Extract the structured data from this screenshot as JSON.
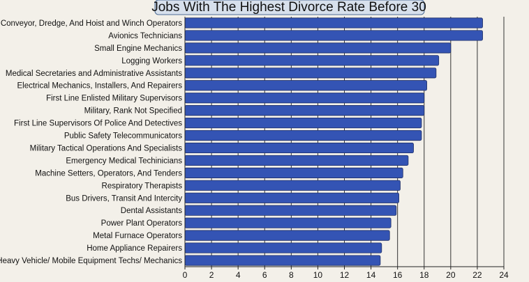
{
  "chart_data": {
    "type": "bar",
    "orientation": "horizontal",
    "title": "Jobs With The Highest Divorce Rate Before 30",
    "xlabel": "",
    "ylabel": "",
    "xlim": [
      0,
      24
    ],
    "x_ticks": [
      "0",
      "2",
      "4",
      "6",
      "8",
      "10",
      "12",
      "14",
      "16",
      "18",
      "20",
      "22",
      "24"
    ],
    "grid": "vertical",
    "bar_color": "#3454b4",
    "categories": [
      "Conveyor, Dredge, And Hoist and Winch Operators",
      "Avionics Technicians",
      "Small Engine Mechanics",
      "Logging Workers",
      "Medical Secretaries and Administrative Assistants",
      "Electrical Mechanics, Installers, And Repairers",
      "First Line Enlisted Military Supervisors",
      "Military, Rank Not Specified",
      "First Line Supervisors Of Police And Detectives",
      "Public Safety Telecommunicators",
      "Military Tactical Operations And Specialists",
      "Emergency Medical Techinicians",
      "Machine Setters, Operators, And Tenders",
      "Respiratory Therapists",
      "Bus Drivers, Transit And Intercity",
      "Dental Assistants",
      "Power Plant Operators",
      "Metal Furnace Operators",
      "Home Appliance Repairers",
      "Heavy Vehicle/ Mobile Equipment Techs/ Mechanics"
    ],
    "values": [
      22.4,
      22.4,
      20.0,
      19.1,
      18.9,
      18.2,
      18.0,
      18.0,
      17.8,
      17.8,
      17.2,
      16.8,
      16.4,
      16.2,
      16.1,
      15.9,
      15.5,
      15.4,
      14.8,
      14.7
    ]
  }
}
